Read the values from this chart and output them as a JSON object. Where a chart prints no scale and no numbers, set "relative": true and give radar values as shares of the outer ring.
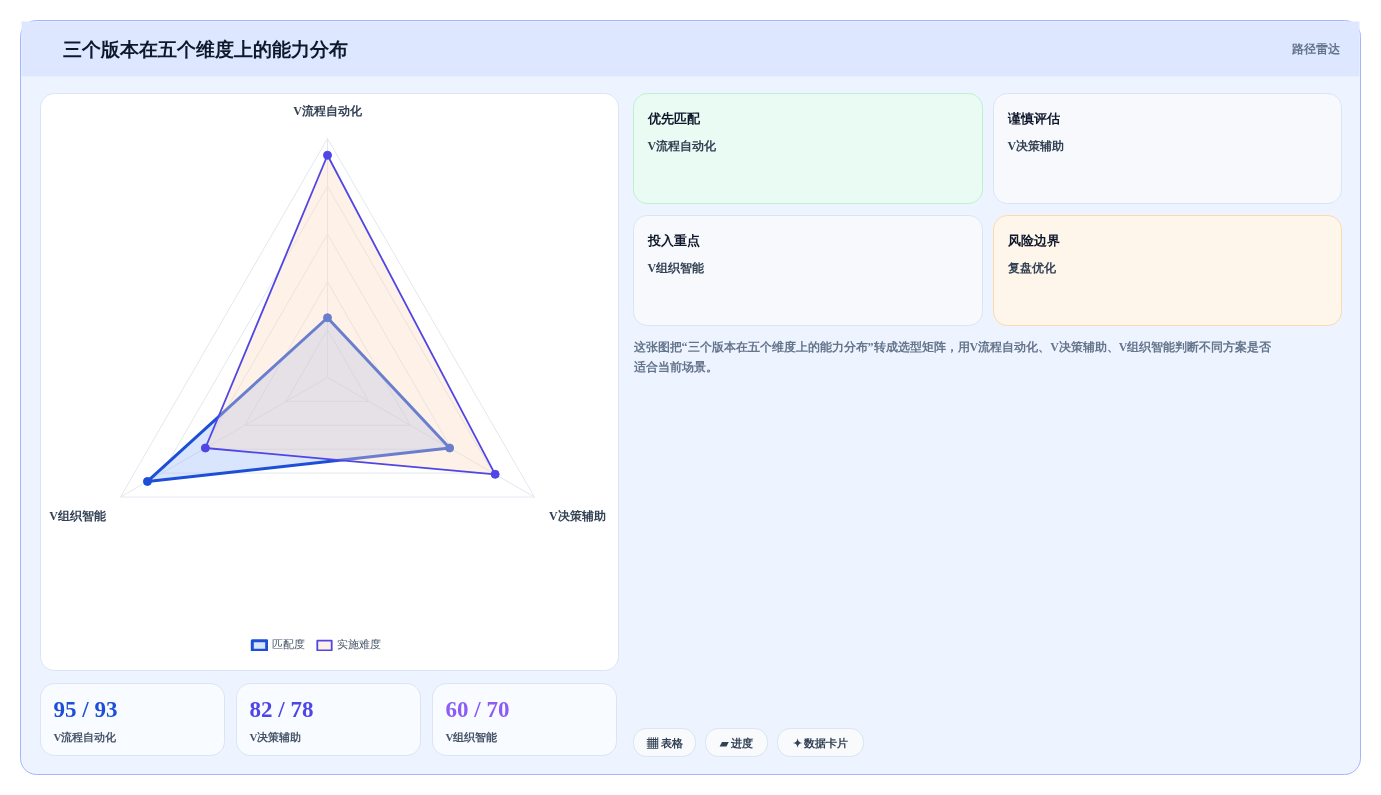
{
  "chart_data": [
    {
      "type": "radar",
      "title": "三个版本在五个维度上的能力分布",
      "categories": [
        "V流程自动化",
        "V决策辅助",
        "V组织智能"
      ],
      "relative": true,
      "grid": true,
      "legend": "bottom",
      "marker": "circle",
      "series": [
        {
          "name": "匹配度",
          "color": "#1d4ed8",
          "values": [
            0.25,
            0.59,
            0.87
          ]
        },
        {
          "name": "实施难度",
          "color": "#4f46e5",
          "values": [
            0.93,
            0.81,
            0.59
          ]
        }
      ]
    },
    {
      "type": "other",
      "annotations": [
        "优先匹配",
        "V流程自动化",
        "谨慎评估",
        "V决策辅助",
        "投入重点",
        "V组织智能",
        "风险边界",
        "复盘优化",
        "这张图把“三个版本在五个维度上的能力分布”转成选型矩阵，用V流程自动化、V决策辅助、V组织智能判断不同方案是否适合当前场景。",
        "95 / 93",
        "V流程自动化",
        "82 / 78",
        "V决策辅助",
        "60 / 70",
        "V组织智能",
        "▦ 表格",
        "▰ 进度",
        "✦ 数据卡片",
        "路径雷达"
      ]
    }
  ]
}
